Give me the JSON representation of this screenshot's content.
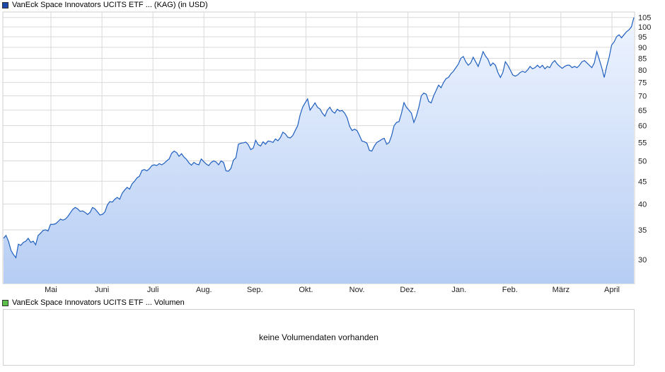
{
  "chart_data": {
    "type": "area",
    "title": "VanEck Space Innovators UCITS ETF ... (KAG) (in USD)",
    "y_scale": "log",
    "ylim": [
      26.5,
      108
    ],
    "yticks": [
      30,
      35,
      40,
      45,
      50,
      55,
      60,
      65,
      70,
      75,
      80,
      85,
      90,
      95,
      100,
      105
    ],
    "ytick_labels": [
      "30",
      "35",
      "40",
      "45",
      "50",
      "55",
      "60",
      "65",
      "70",
      "75",
      "80",
      "85",
      "90",
      "95",
      "100",
      "105"
    ],
    "x_tick_labels": [
      "Mai",
      "Juni",
      "Juli",
      "Aug.",
      "Sep.",
      "Okt.",
      "Nov.",
      "Dez.",
      "Jan.",
      "Feb.",
      "März",
      "April"
    ],
    "grid": true,
    "series": [
      {
        "name": "VanEck Space Innovators UCITS ETF ... (KAG) (in USD)",
        "values": [
          33.5,
          34.0,
          33.0,
          31.5,
          30.8,
          30.3,
          32.5,
          32.3,
          32.8,
          33.0,
          33.5,
          32.8,
          33.0,
          32.4,
          34.0,
          34.4,
          34.9,
          35.0,
          34.8,
          36.0,
          36.0,
          36.1,
          36.5,
          37.0,
          36.8,
          37.0,
          37.5,
          38.2,
          38.9,
          39.3,
          39.0,
          38.5,
          38.6,
          38.3,
          37.9,
          38.3,
          39.3,
          39.0,
          38.4,
          37.8,
          37.9,
          38.4,
          39.8,
          40.5,
          40.4,
          41.0,
          41.4,
          41.0,
          42.3,
          43.0,
          43.6,
          43.2,
          44.4,
          45.0,
          45.8,
          46.2,
          47.6,
          47.8,
          47.5,
          48.0,
          48.8,
          49.0,
          48.8,
          49.3,
          49.0,
          49.4,
          50.0,
          50.5,
          52.0,
          52.6,
          52.2,
          51.2,
          51.9,
          51.0,
          50.4,
          49.5,
          48.9,
          49.6,
          49.2,
          49.0,
          50.5,
          49.8,
          49.2,
          48.8,
          49.6,
          50.0,
          49.7,
          49.0,
          50.0,
          49.6,
          47.5,
          47.4,
          48.1,
          50.2,
          50.8,
          54.5,
          54.8,
          54.9,
          55.1,
          54.4,
          53.0,
          53.4,
          55.6,
          54.4,
          54.0,
          55.2,
          54.5,
          55.4,
          55.3,
          55.0,
          56.0,
          55.5,
          56.4,
          58.0,
          57.5,
          56.5,
          56.3,
          57.0,
          58.5,
          60.0,
          63.5,
          66.0,
          67.5,
          68.9,
          65.0,
          66.2,
          67.5,
          66.0,
          65.4,
          64.0,
          63.0,
          65.0,
          66.0,
          64.6,
          64.0,
          65.3,
          64.7,
          64.9,
          64.0,
          62.5,
          59.8,
          58.5,
          58.9,
          58.5,
          57.0,
          55.4,
          55.2,
          54.8,
          52.8,
          52.6,
          54.0,
          55.0,
          55.4,
          55.9,
          56.2,
          54.5,
          55.0,
          57.0,
          60.0,
          61.0,
          61.3,
          64.0,
          67.6,
          66.0,
          65.0,
          64.0,
          61.0,
          63.0,
          66.0,
          70.0,
          71.0,
          70.6,
          68.0,
          67.5,
          70.0,
          72.0,
          74.0,
          73.0,
          75.0,
          76.5,
          77.0,
          78.5,
          79.5,
          81.0,
          82.5,
          85.0,
          85.8,
          83.5,
          82.0,
          83.0,
          85.5,
          83.5,
          81.5,
          84.5,
          88.0,
          86.0,
          84.5,
          81.8,
          83.0,
          82.0,
          79.0,
          77.0,
          79.0,
          83.5,
          82.0,
          80.0,
          78.0,
          77.5,
          78.0,
          79.0,
          79.5,
          79.0,
          80.0,
          81.5,
          80.5,
          81.0,
          82.0,
          81.0,
          82.0,
          80.5,
          81.5,
          81.0,
          83.0,
          84.0,
          82.5,
          81.5,
          80.7,
          81.5,
          82.0,
          82.0,
          81.0,
          81.5,
          81.0,
          82.0,
          83.5,
          84.0,
          83.0,
          82.0,
          81.0,
          83.0,
          88.0,
          84.5,
          81.0,
          77.0,
          81.5,
          85.5,
          91.0,
          92.5,
          95.0,
          96.0,
          94.5,
          96.0,
          97.5,
          98.5,
          100.0,
          105.0
        ]
      }
    ]
  },
  "volume": {
    "legend": "VanEck Space Innovators UCITS ETF ... Volumen",
    "message": "keine Volumendaten vorhanden"
  },
  "colors": {
    "line": "#1f5fbf",
    "area_top": "#eef4ff",
    "area_bottom": "#b6cdf3",
    "grid": "#d9d9d9",
    "price_swatch": "#1a47a8",
    "volume_swatch": "#5bbf4a"
  }
}
